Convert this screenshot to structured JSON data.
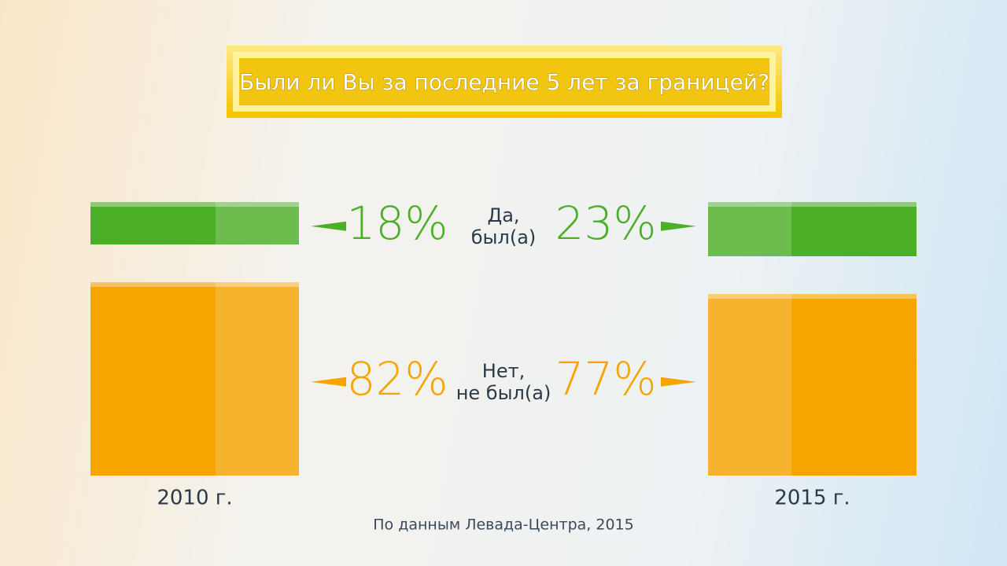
{
  "chart_data": {
    "type": "stacked-box",
    "title": "Были ли Вы за последние 5 лет за границей?",
    "categories": [
      "2010 г.",
      "2015 г."
    ],
    "series": [
      {
        "name": "Да,\nбыл(а)",
        "color": "#4caf28",
        "values": [
          18,
          23
        ],
        "value_labels": [
          "18%",
          "23%"
        ]
      },
      {
        "name": "Нет,\nне был(а)",
        "color": "#f5a400",
        "values": [
          82,
          77
        ],
        "value_labels": [
          "82%",
          "77%"
        ]
      }
    ],
    "source": "По данным Левада-Центра, 2015"
  }
}
